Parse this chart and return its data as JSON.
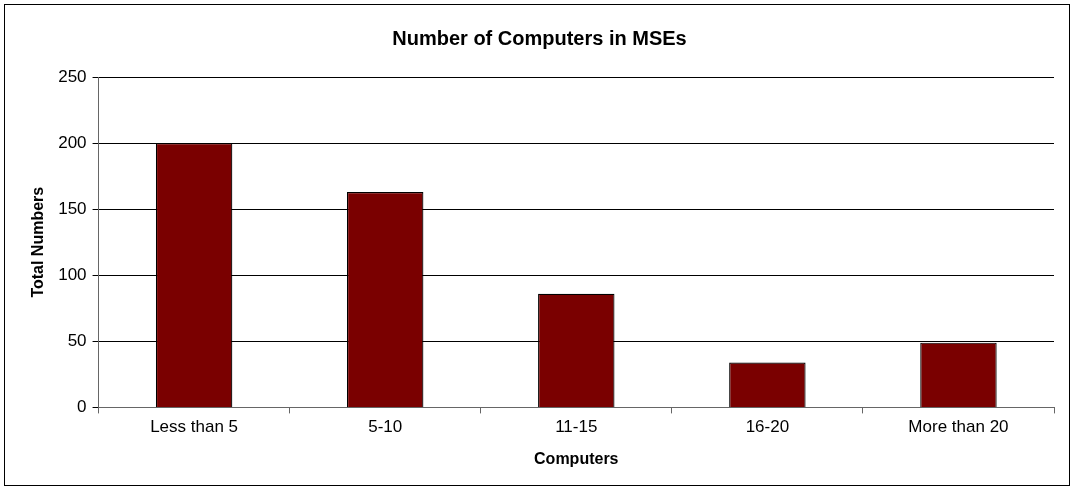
{
  "chart_data": {
    "type": "bar",
    "title": "Number of Computers in MSEs",
    "xlabel": "Computers",
    "ylabel": "Total Numbers",
    "categories": [
      "Less than 5",
      "5-10",
      "11-15",
      "16-20",
      "More than 20"
    ],
    "values": [
      200,
      163,
      86,
      34,
      49
    ],
    "color": "#7a0000",
    "ylim": [
      0,
      250
    ],
    "yticks": [
      0,
      50,
      100,
      150,
      200,
      250
    ],
    "grid": "y",
    "legend": false
  }
}
